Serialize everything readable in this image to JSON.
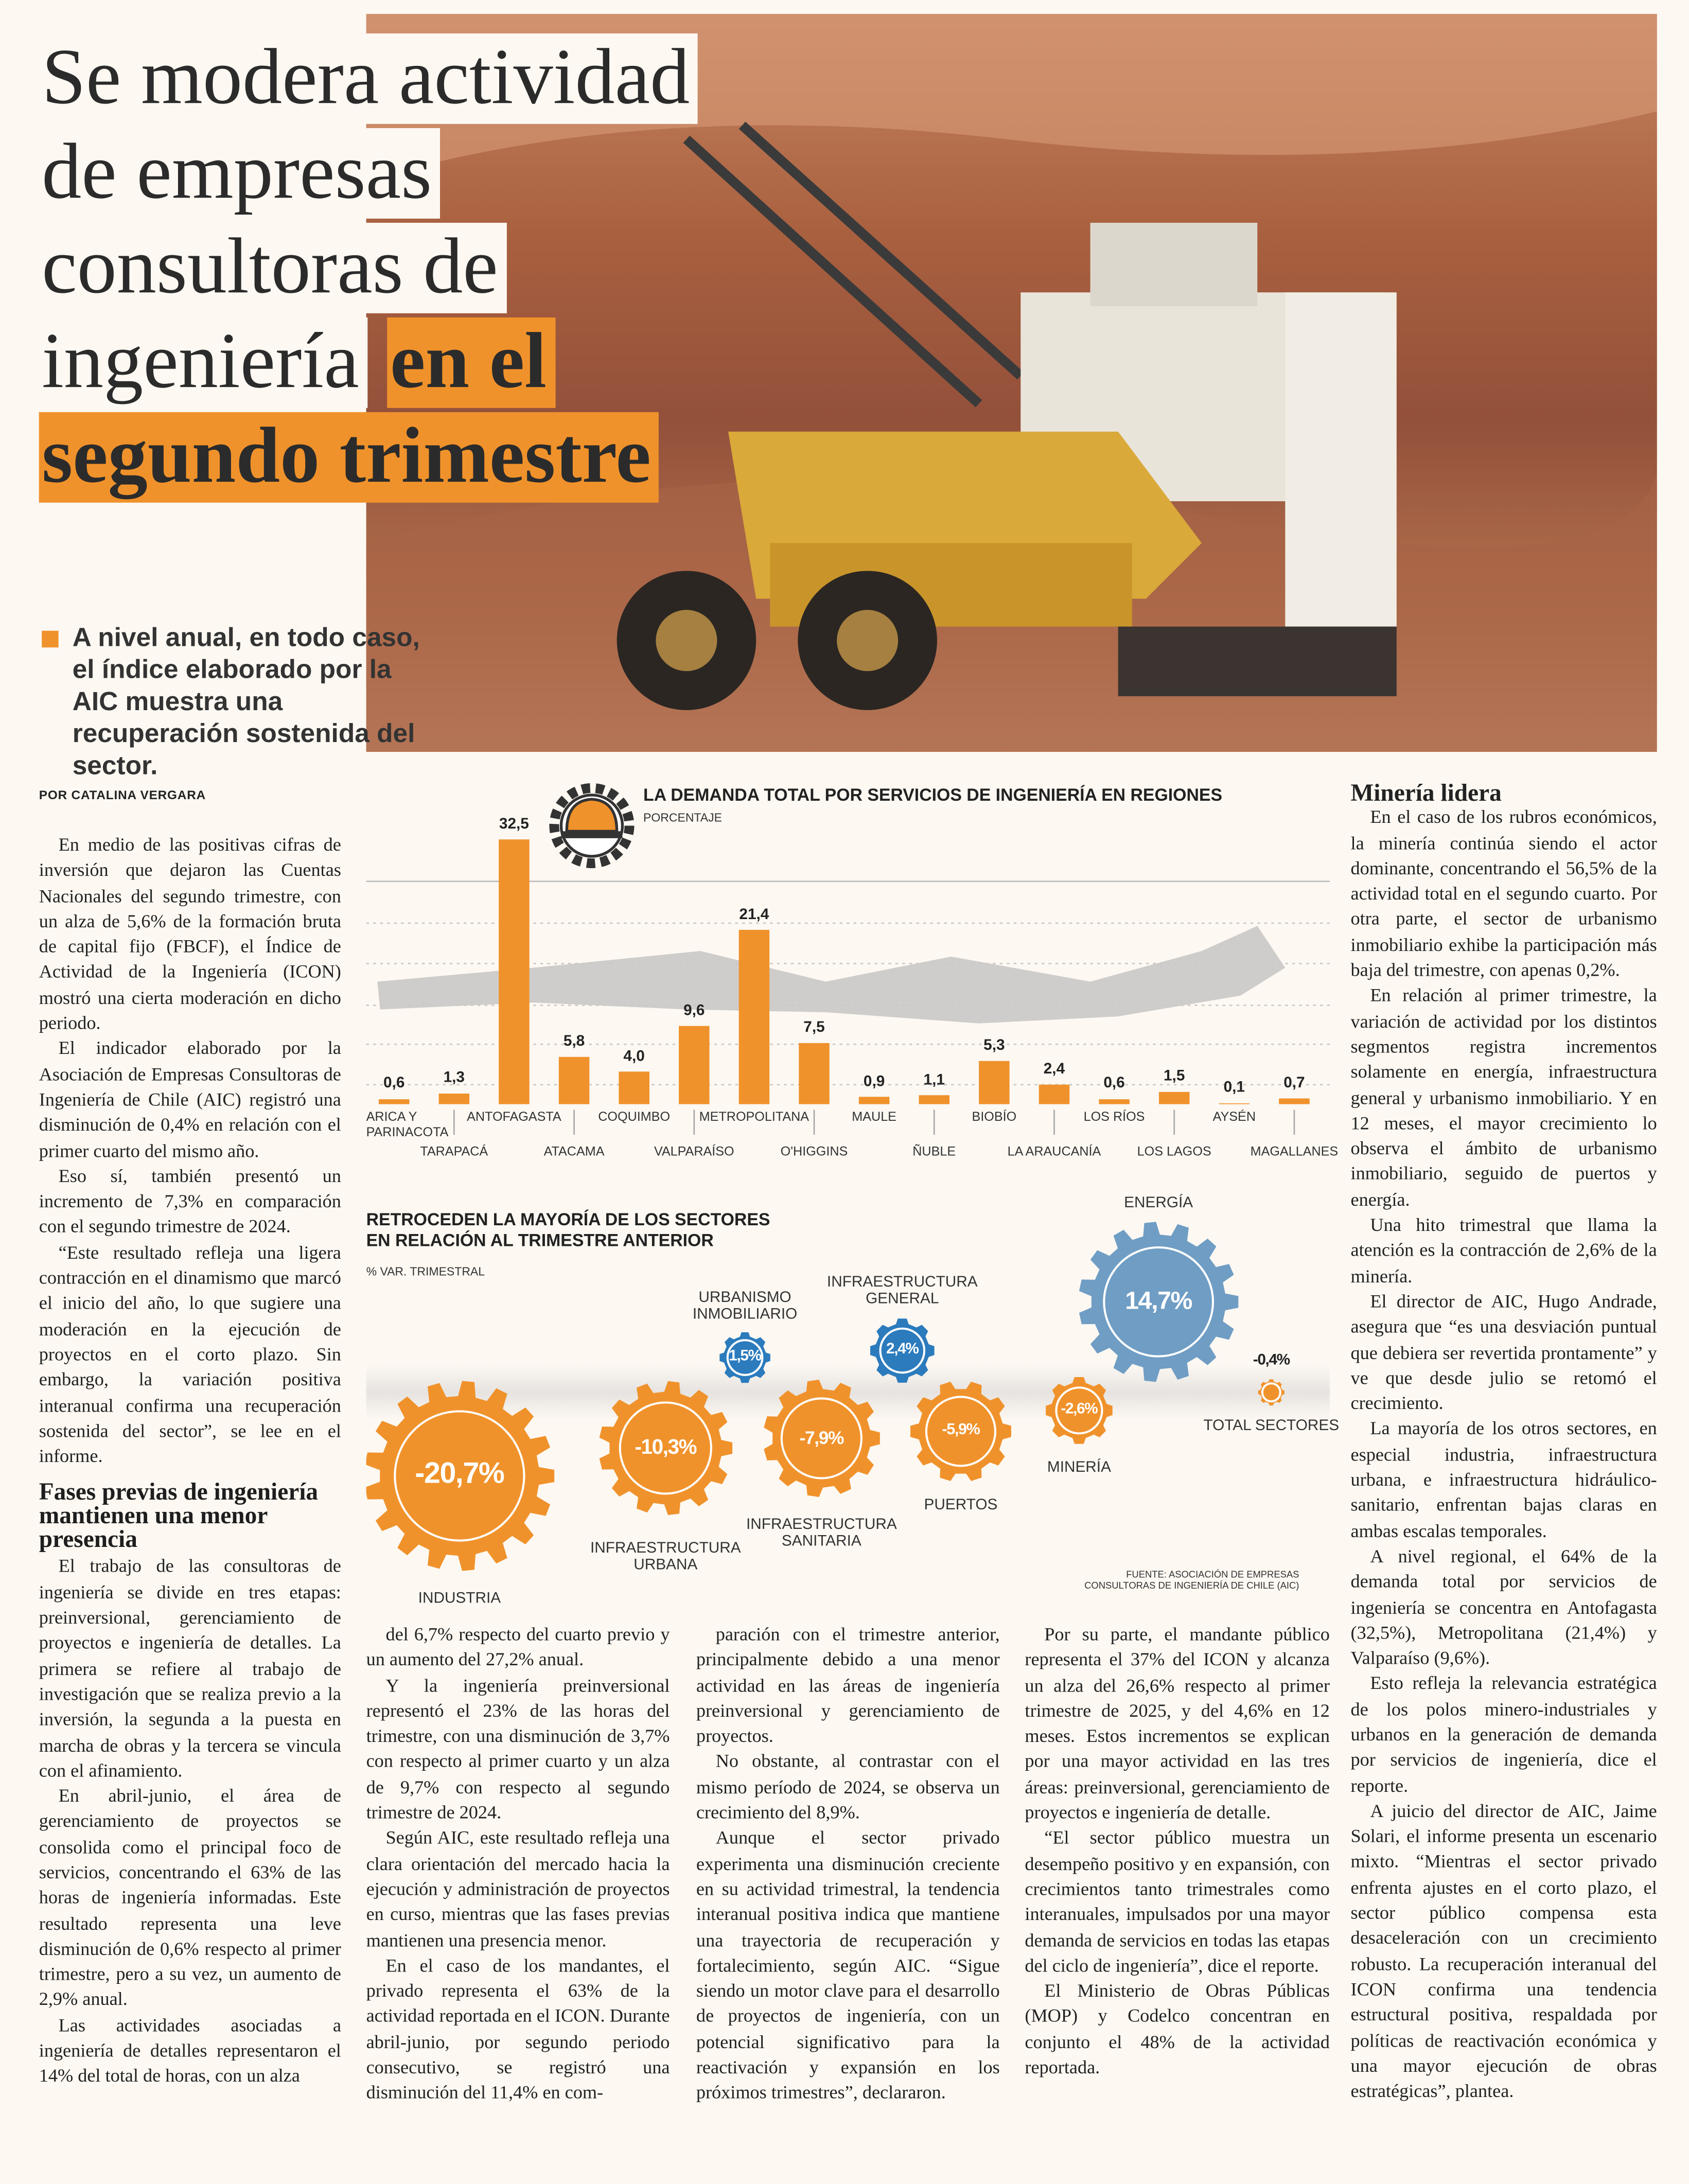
{
  "header": {
    "title_lines": [
      "Se modera actividad",
      "de empresas",
      "consultoras de",
      "ingeniería"
    ],
    "title_highlight": [
      "en el",
      "segundo trimestre"
    ],
    "subtitle": "A nivel anual, en todo caso, el índice elaborado por la AIC muestra una recuperación sostenida del sector.",
    "byline": "POR CATALINA VERGARA"
  },
  "chart_data": [
    {
      "type": "bar",
      "title": "LA DEMANDA TOTAL POR SERVICIOS DE INGENIERÍA EN REGIONES",
      "subtitle": "PORCENTAJE",
      "categories": [
        "ARICA Y PARINACOTA",
        "TARAPACÁ",
        "ANTOFAGASTA",
        "ATACAMA",
        "COQUIMBO",
        "VALPARAÍSO",
        "METROPOLITANA",
        "O'HIGGINS",
        "MAULE",
        "ÑUBLE",
        "BIOBÍO",
        "LA ARAUCANÍA",
        "LOS RÍOS",
        "LOS LAGOS",
        "AYSÉN",
        "MAGALLANES"
      ],
      "values": [
        0.6,
        1.3,
        32.5,
        5.8,
        4.0,
        9.6,
        21.4,
        7.5,
        0.9,
        1.1,
        5.3,
        2.4,
        0.6,
        1.5,
        0.1,
        0.7
      ],
      "value_labels": [
        "0,6",
        "1,3",
        "32,5",
        "5,8",
        "4,0",
        "9,6",
        "21,4",
        "7,5",
        "0,9",
        "1,1",
        "5,3",
        "2,4",
        "0,6",
        "1,5",
        "0,1",
        "0,7"
      ],
      "color": "#f0922b"
    },
    {
      "type": "gear",
      "title": "RETROCEDEN LA MAYORÍA DE LOS SECTORES EN RELACIÓN AL TRIMESTRE ANTERIOR",
      "subtitle": "% VAR. TRIMESTRAL",
      "categories": [
        "INDUSTRIA",
        "INFRAESTRUCTURA URBANA",
        "URBANISMO INMOBILIARIO",
        "INFRAESTRUCTURA SANITARIA",
        "INFRAESTRUCTURA GENERAL",
        "PUERTOS",
        "MINERÍA",
        "ENERGÍA",
        "TOTAL SECTORES"
      ],
      "values": [
        -20.7,
        -10.3,
        1.5,
        -7.9,
        2.4,
        -5.9,
        -2.6,
        14.7,
        -0.4
      ],
      "value_labels": [
        "-20,7%",
        "-10,3%",
        "1,5%",
        "-7,9%",
        "2,4%",
        "-5,9%",
        "-2,6%",
        "14,7%",
        "-0,4%"
      ],
      "colors": [
        "#f0922b",
        "#f0922b",
        "#2b7bbd",
        "#f0922b",
        "#2b7bbd",
        "#f0922b",
        "#f0922b",
        "#6f9dc4",
        "#f0922b"
      ],
      "source": "FUENTE: ASOCIACIÓN DE EMPRESAS CONSULTORAS DE INGENIERÍA DE CHILE (AIC)"
    }
  ],
  "article": {
    "col1a": [
      "En medio de las positivas cifras de inversión que dejaron las Cuentas Nacionales del segundo trimestre, con un alza de 5,6% de la formación bruta de capital fijo (FBCF), el Índice de Actividad de la Ingeniería (ICON) mostró una cierta moderación en dicho periodo.",
      "El indicador elaborado por la Asociación de Empresas Consultoras de Ingeniería de Chile (AIC) registró una disminución de 0,4% en relación con el primer cuarto del mismo año.",
      "Eso sí, también presentó un incremento de 7,3% en comparación con el segundo trimestre de 2024.",
      "“Este resultado refleja una ligera contracción en el dinamismo que marcó el inicio del año, lo que sugiere una moderación en la ejecución de proyectos en el corto plazo. Sin embargo, la variación positiva interanual confirma una recuperación sostenida del sector”, se lee en el informe."
    ],
    "subhead": "Fases previas de ingeniería mantienen una menor presencia",
    "col1b": [
      "El trabajo de las consultoras de ingeniería se divide en tres etapas: preinversional, gerenciamiento de proyectos e ingeniería de detalles. La primera se refiere al trabajo de investigación que se realiza previo a la inversión, la segunda a la puesta en marcha de obras y la tercera se vincula con el afinamiento.",
      "En abril-junio, el área de gerenciamiento de proyectos se consolida como el principal foco de servicios, concentrando el 63% de las horas de ingeniería informadas. Este resultado representa una leve disminución de 0,6% respecto al primer trimestre, pero a su vez, un aumento de 2,9% anual.",
      "Las actividades asociadas a ingeniería de detalles representaron el 14% del total de horas, con un alza"
    ],
    "col2": [
      "del 6,7% respecto del cuarto previo y un aumento del 27,2% anual.",
      "Y la ingeniería preinversional representó el 23% de las horas del trimestre, con una disminución de 3,7% con respecto al primer cuarto y un alza de 9,7% con respecto al segundo trimestre de 2024.",
      "Según AIC, este resultado refleja una clara orientación del mercado hacia la ejecución y administración de proyectos en curso, mientras que las fases previas mantienen una presencia menor.",
      "En el caso de los mandantes, el privado representa el 63% de la actividad reportada en el ICON. Durante abril-junio, por segundo periodo consecutivo, se registró una disminución del 11,4% en com-"
    ],
    "col3": [
      "paración con el trimestre anterior, principalmente debido a una menor actividad en las áreas de ingeniería preinversional y gerenciamiento de proyectos.",
      "No obstante, al contrastar con el mismo período de 2024, se observa un crecimiento del 8,9%.",
      "Aunque el sector privado experimenta una disminución creciente en su actividad trimestral, la tendencia interanual positiva indica que mantiene una trayectoria de recuperación y fortalecimiento, según AIC. “Sigue siendo un motor clave para el desarrollo de proyectos de ingeniería, con un potencial significativo para la reactivación y expansión en los próximos trimestres”, declararon."
    ],
    "col4": [
      "Por su parte, el mandante público representa el 37% del ICON y alcanza un alza del 26,6% respecto al primer trimestre de 2025, y del 4,6% en 12 meses. Estos incrementos se explican por una mayor actividad en las tres áreas: preinversional, gerenciamiento de proyectos e ingeniería de detalle.",
      "“El sector público muestra un desempeño positivo y en expansión, con crecimientos tanto trimestrales como interanuales, impulsados por una mayor demanda de servicios en todas las etapas del ciclo de ingeniería”, dice el reporte.",
      "El Ministerio de Obras Públicas (MOP) y Codelco concentran en conjunto el 48% de la actividad reportada."
    ],
    "side_heading": "Minería lidera",
    "side": [
      "En el caso de los rubros económicos, la minería continúa siendo el actor dominante, concentrando el 56,5% de la actividad total en el segundo cuarto. Por otra parte, el sector de urbanismo inmobiliario exhibe la participación más baja del trimestre, con apenas 0,2%.",
      "En relación al primer trimestre, la variación de actividad por los distintos segmentos registra incrementos solamente en energía, infraestructura general y urbanismo inmobiliario. Y en 12 meses, el mayor crecimiento lo observa el ámbito de urbanismo inmobiliario, seguido de puertos y energía.",
      "Una hito trimestral que llama la atención es la contracción de 2,6% de la minería.",
      "El director de AIC, Hugo Andrade, asegura que “es una desviación puntual que debiera ser revertida prontamente” y ve que desde julio se retomó el crecimiento.",
      "La mayoría de los otros sectores, en especial industria, infraestructura urbana, e infraestructura hidráulico-sanitario, enfrentan bajas claras en ambas escalas temporales.",
      "A nivel regional, el 64% de la demanda total por servicios de ingeniería se concentra en Antofagasta (32,5%), Metropolitana (21,4%) y Valparaíso (9,6%).",
      "Esto refleja la relevancia estratégica de los polos minero-industriales y urbanos en la generación de demanda por servicios de ingeniería, dice el reporte.",
      "A juicio del director de AIC, Jaime Solari, el informe presenta un escenario mixto. “Mientras el sector privado enfrenta ajustes en el corto plazo, el sector público compensa esta desaceleración con un crecimiento robusto. La recuperación interanual del ICON confirma una tendencia estructural positiva, respaldada por políticas de reactivación económica y una mayor ejecución de obras estratégicas”, plantea."
    ]
  }
}
